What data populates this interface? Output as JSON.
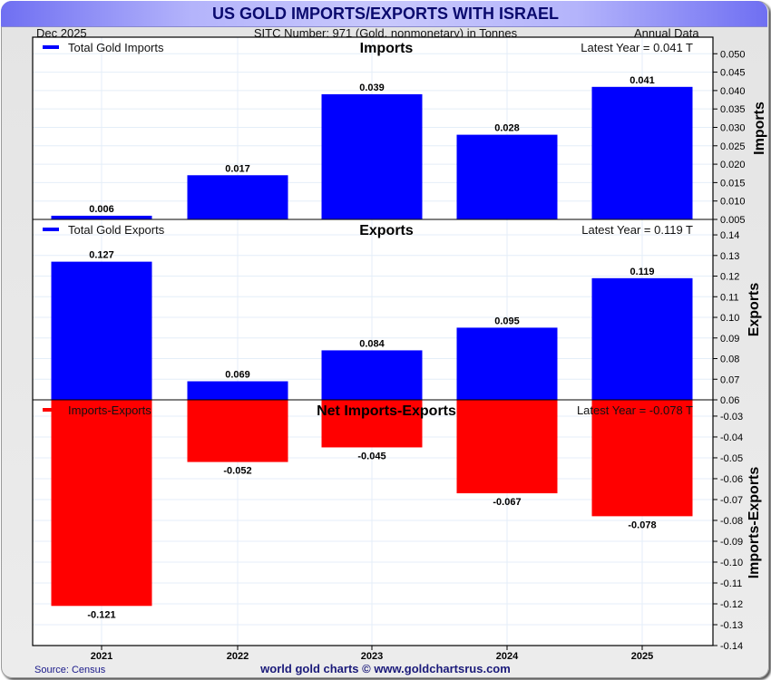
{
  "header": {
    "title": "US GOLD IMPORTS/EXPORTS WITH ISRAEL",
    "date": "Dec  2025",
    "sitc": "SITC Number: 971 (Gold, nonmonetary) in Tonnes",
    "frequency": "Annual Data"
  },
  "footer": {
    "source": "Source: Census",
    "credit": "world gold charts © www.goldchartsrus.com"
  },
  "colors": {
    "imports": "#0000ff",
    "exports": "#0000ff",
    "net": "#ff0000",
    "grid": "#e4eef8",
    "axis": "#000000"
  },
  "chart_data": [
    {
      "type": "bar",
      "title": "Imports",
      "legend": "Total Gold Imports",
      "legend_position": "top-left",
      "latest": "Latest Year = 0.041 T",
      "ylabel": "Imports",
      "categories": [
        "2021",
        "2022",
        "2023",
        "2024",
        "2025"
      ],
      "values": [
        0.006,
        0.017,
        0.039,
        0.028,
        0.041
      ],
      "labels": [
        "0.006",
        "0.017",
        "0.039",
        "0.028",
        "0.041"
      ],
      "ylim": [
        0.005,
        0.0545
      ],
      "yticks": [
        0.005,
        0.01,
        0.015,
        0.02,
        0.025,
        0.03,
        0.035,
        0.04,
        0.045,
        0.05
      ],
      "ytick_labels": [
        "0.005",
        "0.010",
        "0.015",
        "0.020",
        "0.025",
        "0.030",
        "0.035",
        "0.040",
        "0.045",
        "0.050"
      ],
      "grid": true
    },
    {
      "type": "bar",
      "title": "Exports",
      "legend": "Total Gold Exports",
      "legend_position": "top-left",
      "latest": "Latest Year = 0.119 T",
      "ylabel": "Exports",
      "categories": [
        "2021",
        "2022",
        "2023",
        "2024",
        "2025"
      ],
      "values": [
        0.127,
        0.069,
        0.084,
        0.095,
        0.119
      ],
      "labels": [
        "0.127",
        "0.069",
        "0.084",
        "0.095",
        "0.119"
      ],
      "ylim": [
        0.06,
        0.1475
      ],
      "yticks": [
        0.06,
        0.07,
        0.08,
        0.09,
        0.1,
        0.11,
        0.12,
        0.13,
        0.14
      ],
      "ytick_labels": [
        "0.06",
        "0.07",
        "0.08",
        "0.09",
        "0.10",
        "0.11",
        "0.12",
        "0.13",
        "0.14"
      ],
      "grid": true
    },
    {
      "type": "bar",
      "title": "Net Imports-Exports",
      "legend": "Imports-Exports",
      "legend_position": "top-left",
      "latest": "Latest Year = -0.078 T",
      "ylabel": "Imports-Exports",
      "categories": [
        "2021",
        "2022",
        "2023",
        "2024",
        "2025"
      ],
      "values": [
        -0.121,
        -0.052,
        -0.045,
        -0.067,
        -0.078
      ],
      "labels": [
        "-0.121",
        "-0.052",
        "-0.045",
        "-0.067",
        "-0.078"
      ],
      "ylim": [
        -0.14,
        -0.0222
      ],
      "yticks": [
        -0.03,
        -0.04,
        -0.05,
        -0.06,
        -0.07,
        -0.08,
        -0.09,
        -0.1,
        -0.11,
        -0.12,
        -0.13,
        -0.14
      ],
      "ytick_labels": [
        "-0.03",
        "-0.04",
        "-0.05",
        "-0.06",
        "-0.07",
        "-0.08",
        "-0.09",
        "-0.10",
        "-0.11",
        "-0.12",
        "-0.13",
        "-0.14"
      ],
      "xtick_labels": [
        "2021",
        "2022",
        "2023",
        "2024",
        "2025"
      ],
      "grid": true
    }
  ]
}
